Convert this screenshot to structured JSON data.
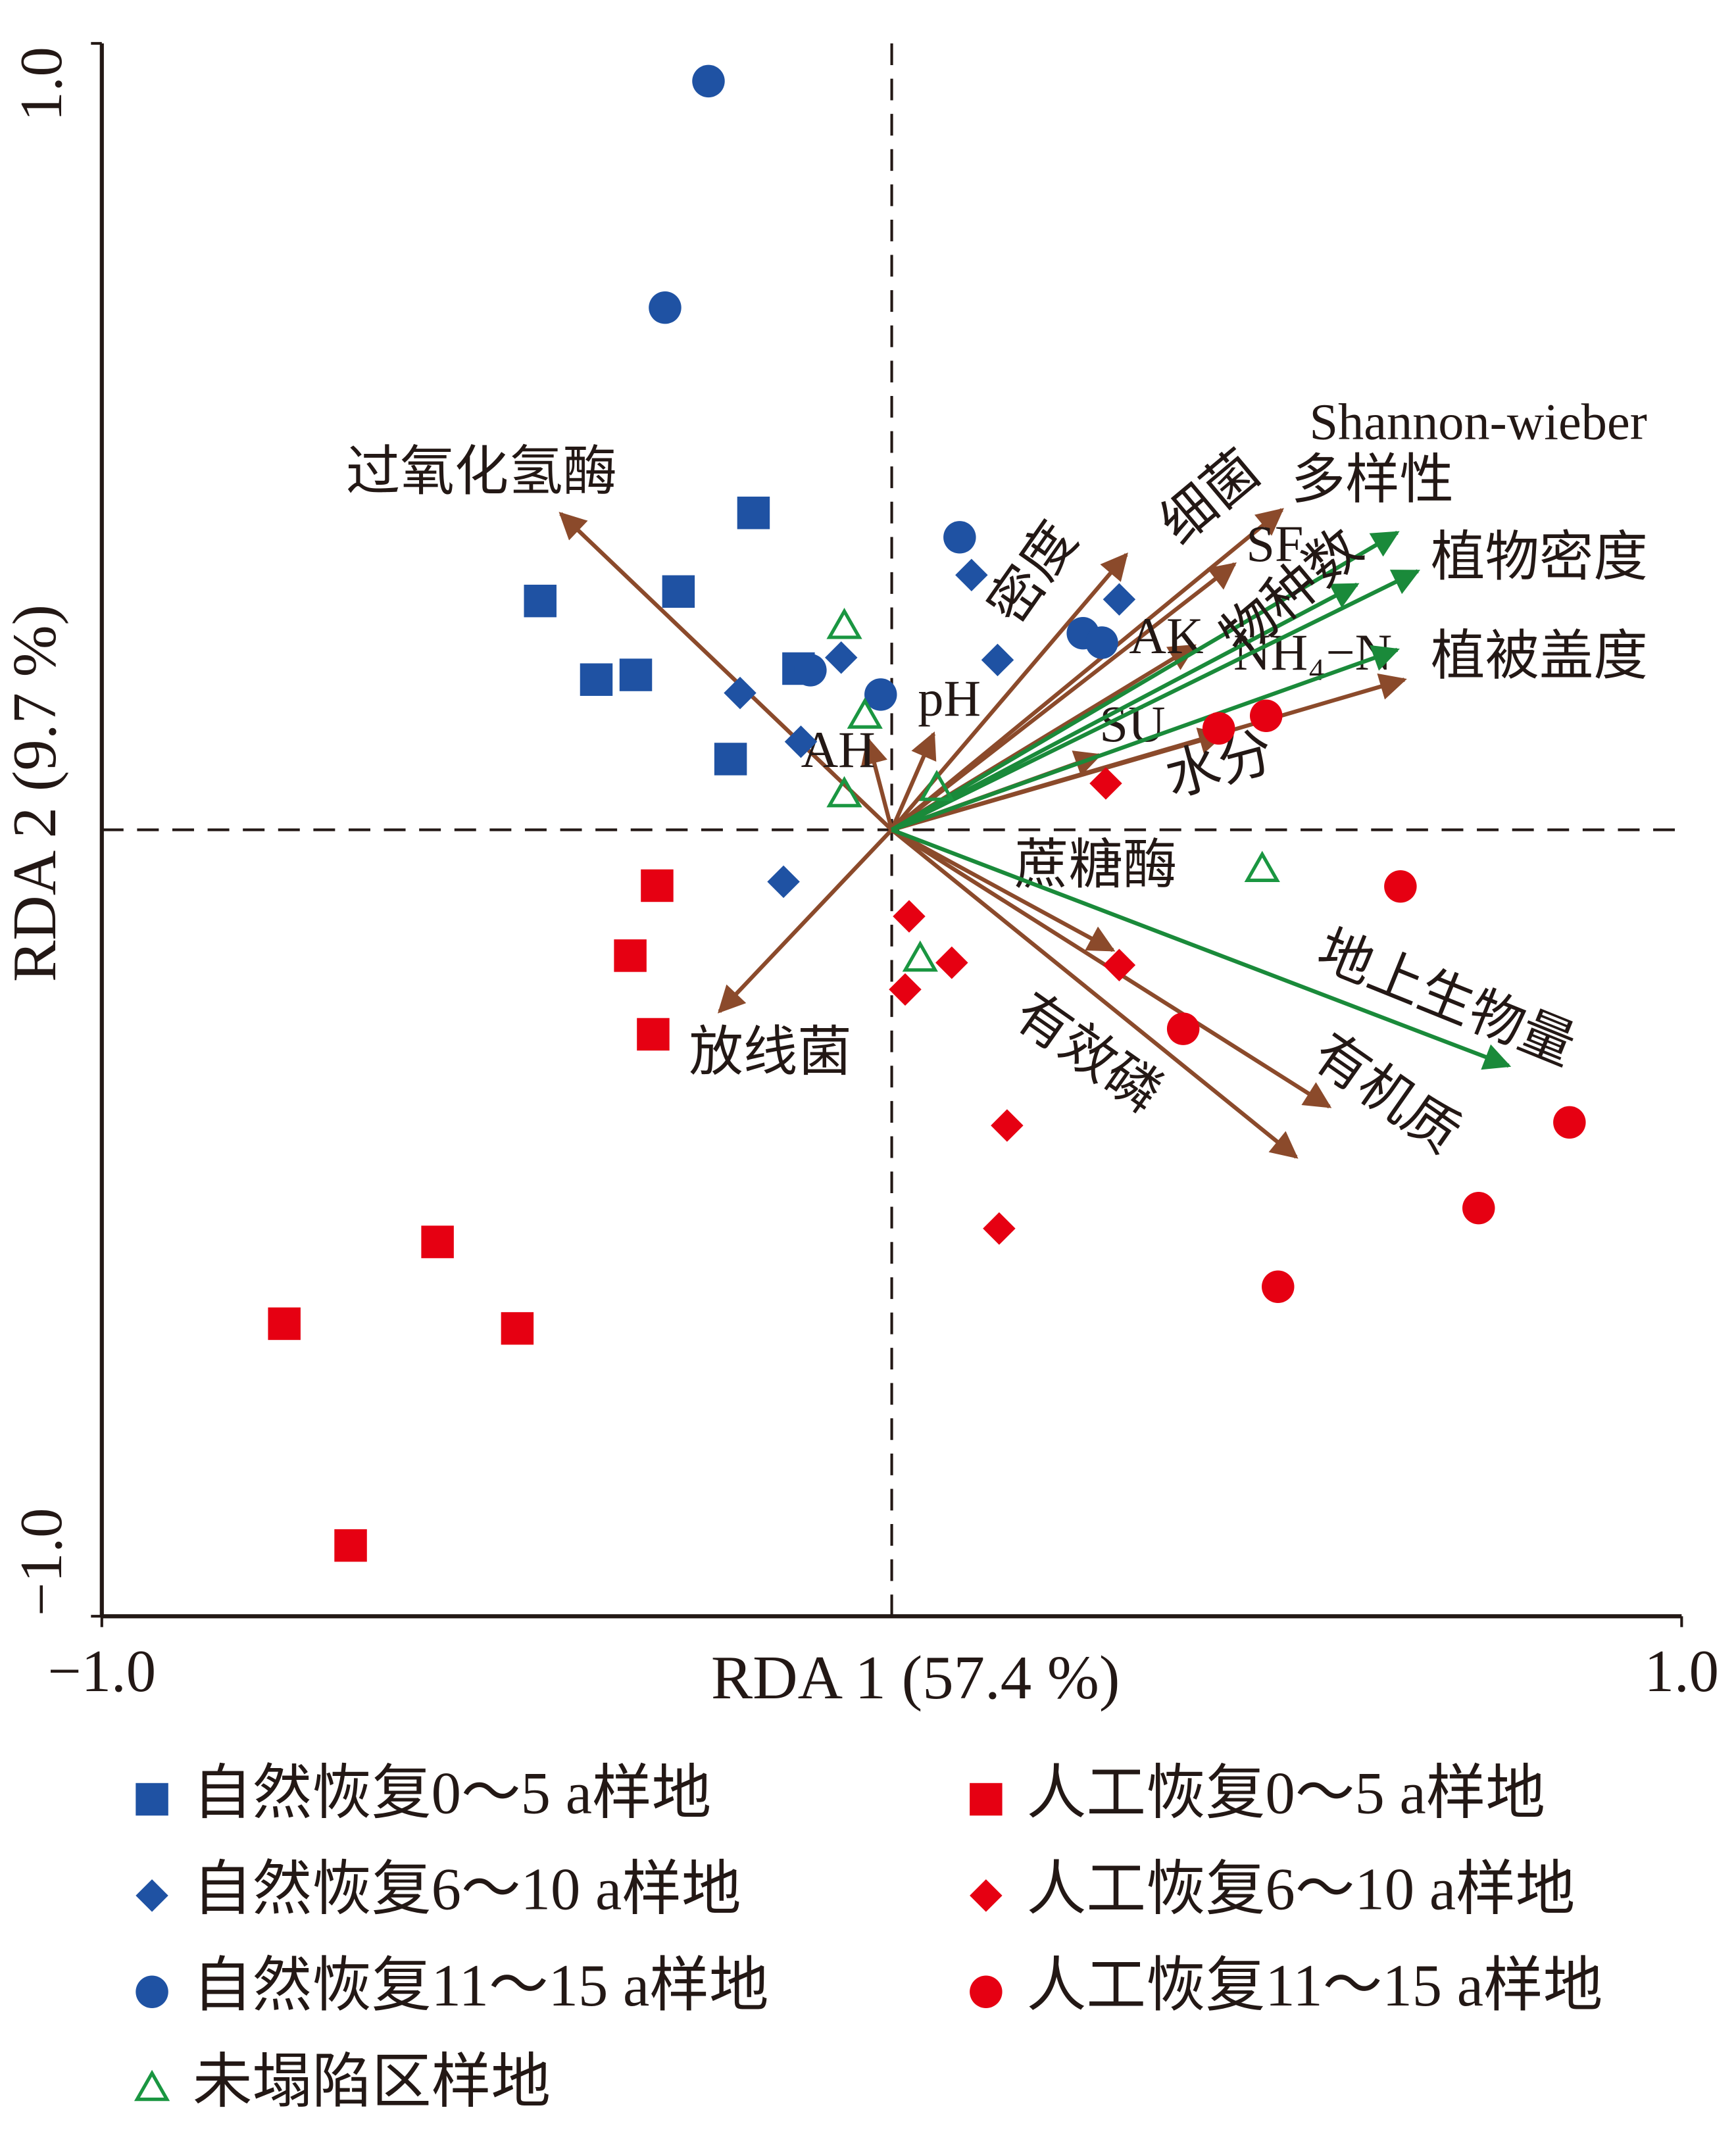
{
  "chart_data": {
    "type": "scatter",
    "x_label": "RDA 1 (57.4 %)",
    "y_label": "RDA 2 (9.7 %)",
    "xlim": [
      -1,
      1
    ],
    "ylim": [
      -1,
      1
    ],
    "xticks": [
      {
        "value": -1,
        "label": "−1.0"
      },
      {
        "value": 1,
        "label": "1.0"
      }
    ],
    "yticks": [
      {
        "value": -1,
        "label": "−1.0"
      },
      {
        "value": 1,
        "label": "1.0"
      }
    ],
    "series": [
      {
        "name": "自然恢复0～5 a样地",
        "color": "#1f52a3",
        "marker": "square",
        "x": [
          -0.175,
          -0.445,
          -0.27,
          -0.374,
          -0.324,
          -0.118,
          -0.204
        ],
        "y": [
          0.403,
          0.291,
          0.303,
          0.191,
          0.197,
          0.205,
          0.09
        ]
      },
      {
        "name": "自然恢复6～10 a样地",
        "color": "#1f52a3",
        "marker": "diamond",
        "x": [
          0.101,
          0.288,
          -0.064,
          0.134,
          -0.192,
          -0.115,
          -0.137
        ],
        "y": [
          0.324,
          0.293,
          0.219,
          0.216,
          0.174,
          0.112,
          -0.066
        ]
      },
      {
        "name": "自然恢复11～15 a样地",
        "color": "#1f52a3",
        "marker": "circle",
        "x": [
          -0.232,
          -0.287,
          0.086,
          0.242,
          0.266,
          -0.103,
          -0.014
        ],
        "y": [
          0.952,
          0.664,
          0.372,
          0.25,
          0.238,
          0.203,
          0.172
        ]
      },
      {
        "name": "人工恢复0～5 a样地",
        "color": "#e60012",
        "marker": "square",
        "x": [
          -0.297,
          -0.331,
          -0.302,
          -0.575,
          -0.769,
          -0.474,
          -0.685
        ],
        "y": [
          -0.071,
          -0.16,
          -0.26,
          -0.524,
          -0.628,
          -0.634,
          -0.91
        ]
      },
      {
        "name": "人工恢复6～10 a样地",
        "color": "#e60012",
        "marker": "diamond",
        "x": [
          0.271,
          0.022,
          0.076,
          0.017,
          0.288,
          0.146,
          0.136
        ],
        "y": [
          0.059,
          -0.11,
          -0.169,
          -0.203,
          -0.172,
          -0.376,
          -0.507
        ]
      },
      {
        "name": "人工恢复11～15 a样地",
        "color": "#e60012",
        "marker": "circle",
        "x": [
          0.414,
          0.474,
          0.644,
          0.369,
          0.858,
          0.743,
          0.489
        ],
        "y": [
          0.129,
          0.145,
          -0.072,
          -0.253,
          -0.372,
          -0.481,
          -0.581
        ]
      },
      {
        "name": "未塌陷区样地",
        "color": "#1a9641",
        "marker": "triangle",
        "x": [
          -0.06,
          -0.034,
          -0.06,
          0.057,
          0.469,
          0.036
        ],
        "y": [
          0.259,
          0.145,
          0.045,
          0.053,
          -0.05,
          -0.164
        ]
      }
    ],
    "vectors": [
      {
        "name": "过氧化氢酶",
        "color": "#8b4a2b",
        "x": -0.419,
        "y": 0.402
      },
      {
        "name": "放线菌",
        "color": "#8b4a2b",
        "x": -0.218,
        "y": -0.231
      },
      {
        "name": "AH",
        "color": "#8b4a2b",
        "x": -0.03,
        "y": 0.115
      },
      {
        "name": "pH",
        "color": "#8b4a2b",
        "x": 0.053,
        "y": 0.122
      },
      {
        "name": "密度",
        "color": "#8b4a2b",
        "x": 0.297,
        "y": 0.35
      },
      {
        "name": "细菌",
        "color": "#8b4a2b",
        "x": 0.494,
        "y": 0.407
      },
      {
        "name": "SF",
        "color": "#8b4a2b",
        "x": 0.434,
        "y": 0.338
      },
      {
        "name": "AK",
        "color": "#8b4a2b",
        "x": 0.383,
        "y": 0.234
      },
      {
        "name": "NH₄−N",
        "color": "#8b4a2b",
        "x": 0.649,
        "y": 0.191
      },
      {
        "name": "SU",
        "color": "#8b4a2b",
        "x": 0.263,
        "y": 0.095
      },
      {
        "name": "水分",
        "color": "#8b4a2b",
        "x": 0.42,
        "y": 0.122
      },
      {
        "name": "蔗糖酶",
        "color": "#8b4a2b",
        "x": 0.28,
        "y": -0.153
      },
      {
        "name": "有效磷",
        "color": "#8b4a2b",
        "x": 0.512,
        "y": -0.416
      },
      {
        "name": "有机质",
        "color": "#8b4a2b",
        "x": 0.554,
        "y": -0.352
      },
      {
        "name": "Shannon-wieber",
        "name2": "多样性",
        "color": "#1a8a3a",
        "x": 0.64,
        "y": 0.378
      },
      {
        "name": "物种数",
        "color": "#1a8a3a",
        "x": 0.589,
        "y": 0.312
      },
      {
        "name": "植物密度",
        "color": "#1a8a3a",
        "x": 0.666,
        "y": 0.329
      },
      {
        "name": "植被盖度",
        "color": "#1a8a3a",
        "x": 0.64,
        "y": 0.229
      },
      {
        "name": "地上生物量",
        "color": "#1a8a3a",
        "x": 0.781,
        "y": -0.3
      }
    ]
  }
}
